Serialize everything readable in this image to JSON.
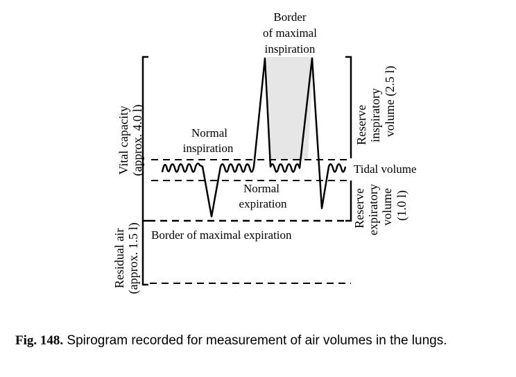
{
  "labels": {
    "border_max_inspiration": [
      "Border",
      "of maximal",
      "inspiration"
    ],
    "normal_inspiration": [
      "Normal",
      "inspiration"
    ],
    "normal_expiration": [
      "Normal",
      "expiration"
    ],
    "border_max_expiration": "Border of maximal expiration",
    "tidal_volume": "Tidal volume",
    "vital_capacity": [
      "Vital capacity",
      "(approx. 4.0 l)"
    ],
    "residual_air": [
      "Residual air",
      "(approx. 1.5 l)"
    ],
    "reserve_inspiratory": [
      "Reserve",
      "inspiratory",
      "volume (2.5 l)"
    ],
    "reserve_expiratory": [
      "Reserve",
      "expiratory",
      "volume",
      "(1.0 l)"
    ]
  },
  "caption": {
    "number": "Fig. 148.",
    "text": " Spirogram recorded for measurement of air volumes in the lungs."
  }
}
